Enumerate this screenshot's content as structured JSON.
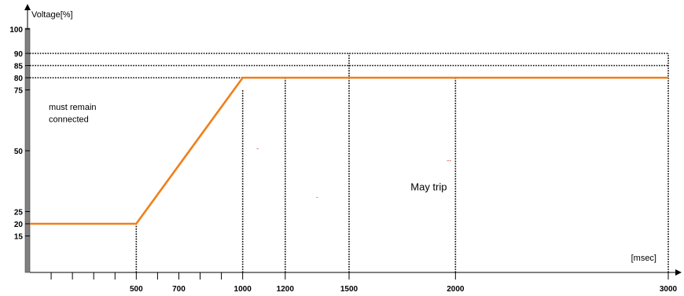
{
  "chart_data": {
    "type": "line",
    "ylabel": "Voltage[%]",
    "xlabel": "[msec]",
    "xlim": [
      0,
      3000
    ],
    "ylim": [
      0,
      100
    ],
    "y_ticks": [
      {
        "value": 100,
        "label": "100"
      },
      {
        "value": 90,
        "label": "90"
      },
      {
        "value": 85,
        "label": "85"
      },
      {
        "value": 80,
        "label": "80"
      },
      {
        "value": 75,
        "label": "75"
      },
      {
        "value": 50,
        "label": "50"
      },
      {
        "value": 25,
        "label": "25"
      },
      {
        "value": 20,
        "label": "20"
      },
      {
        "value": 15,
        "label": "15"
      }
    ],
    "x_ticks": [
      {
        "value": 500,
        "label": "500"
      },
      {
        "value": 700,
        "label": "700"
      },
      {
        "value": 1000,
        "label": "1000"
      },
      {
        "value": 1200,
        "label": "1200"
      },
      {
        "value": 1500,
        "label": "1500"
      },
      {
        "value": 2000,
        "label": "2000"
      },
      {
        "value": 3000,
        "label": "3000"
      }
    ],
    "x_minor_ticks": [
      100,
      200,
      300,
      400,
      600,
      800,
      900
    ],
    "series": [
      {
        "color": "#f07f1a",
        "points": [
          [
            0,
            20
          ],
          [
            500,
            20
          ],
          [
            1000,
            80
          ],
          [
            3000,
            80
          ]
        ]
      }
    ],
    "reference_lines": {
      "horizontal": [
        {
          "y": 90,
          "x_from": 0,
          "x_to": 3000
        },
        {
          "y": 85,
          "x_from": 0,
          "x_to": 3000
        },
        {
          "y": 80,
          "x_from": 0,
          "x_to": 1000
        }
      ],
      "vertical": [
        {
          "x": 500,
          "y_from": 0,
          "y_to": 20
        },
        {
          "x": 1000,
          "y_from": 0,
          "y_to": 75
        },
        {
          "x": 1200,
          "y_from": 0,
          "y_to": 80
        },
        {
          "x": 1500,
          "y_from": 0,
          "y_to": 90
        },
        {
          "x": 2000,
          "y_from": 0,
          "y_to": 80
        },
        {
          "x": 3000,
          "y_from": 0,
          "y_to": 90
        }
      ]
    },
    "annotations": [
      {
        "text": "must remain",
        "x": 210,
        "y": 68
      },
      {
        "text": "connected",
        "x": 210,
        "y": 63
      },
      {
        "text": "May trip",
        "x": 1900,
        "y": 35
      }
    ],
    "stray_marks": [
      {
        "text": "-",
        "x": 1070,
        "y": 50,
        "color": "#c0392b"
      },
      {
        "text": "-",
        "x": 1350,
        "y": 30,
        "color": "#27ae60"
      },
      {
        "text": "--",
        "x": 1970,
        "y": 45,
        "color": "#c0392b"
      }
    ],
    "colors": {
      "axis": "#808080",
      "grid": "#000000",
      "series": "#f07f1a"
    }
  }
}
